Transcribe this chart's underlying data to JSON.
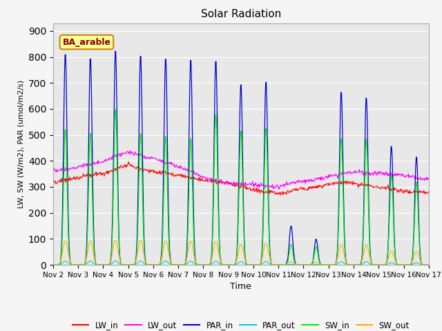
{
  "title": "Solar Radiation",
  "ylabel": "LW, SW (W/m2), PAR (umol/m2/s)",
  "xlabel": "Time",
  "annotation": "BA_arable",
  "ylim": [
    0,
    930
  ],
  "yticks": [
    0,
    100,
    200,
    300,
    400,
    500,
    600,
    700,
    800,
    900
  ],
  "num_days": 15,
  "colors": {
    "LW_in": "#ff0000",
    "LW_out": "#ff00ff",
    "PAR_in": "#0000cc",
    "PAR_out": "#00cccc",
    "SW_in": "#00ee00",
    "SW_out": "#ffaa00"
  },
  "plot_bg_color": "#e8e8e8",
  "fig_bg_color": "#f5f5f5",
  "annotation_bg": "#ffff99",
  "annotation_border": "#cc8800",
  "annotation_text_color": "#880000",
  "PAR_peaks": [
    820,
    800,
    830,
    810,
    800,
    795,
    790,
    700,
    710,
    150,
    100,
    670,
    650,
    460,
    420
  ],
  "SW_peaks": [
    525,
    510,
    605,
    510,
    500,
    490,
    585,
    520,
    530,
    80,
    70,
    490,
    490,
    350,
    320
  ],
  "SW_out_peaks": [
    95,
    95,
    97,
    96,
    95,
    94,
    93,
    82,
    85,
    12,
    10,
    80,
    80,
    55,
    52
  ]
}
